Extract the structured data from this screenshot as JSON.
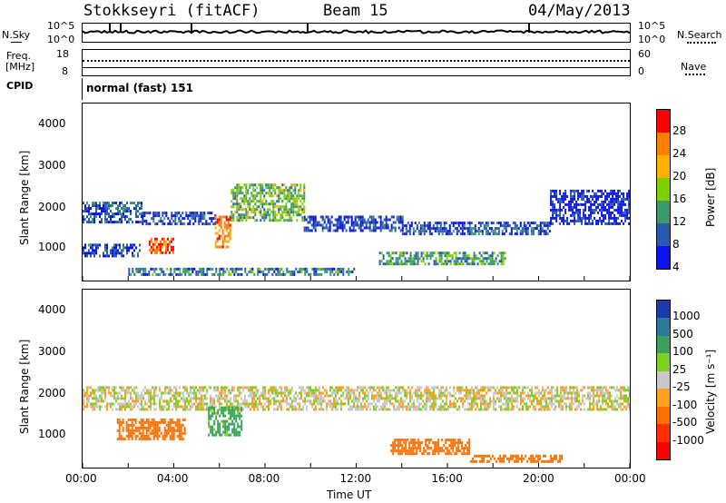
{
  "header": {
    "station": "Stokkseyri (fitACF)",
    "beam": "Beam 15",
    "date": "04/May/2013"
  },
  "nsky_panel": {
    "left_label": "N.Sky",
    "left_ticks": [
      "10^5",
      "10^0"
    ],
    "right_ticks": [
      "10^5",
      "10^0"
    ],
    "right_label": "N.Search"
  },
  "freq_panel": {
    "left_label_1": "Freq.",
    "left_label_2": "[MHz]",
    "left_ticks": [
      "18",
      "8"
    ],
    "right_ticks": [
      "60",
      "0"
    ],
    "right_label": "Nave"
  },
  "cpid_panel": {
    "left_label": "CPID",
    "mode_text": "normal (fast) 151"
  },
  "power_panel": {
    "ylabel": "Slant Range [km]",
    "colorbar_label": "Power [dB]",
    "colorbar_ticks": [
      "28",
      "24",
      "20",
      "16",
      "12",
      "8",
      "4"
    ],
    "colorbar_colors": [
      "#ff0000",
      "#ff7f00",
      "#ffb000",
      "#7fd000",
      "#3a9a6a",
      "#2a5ab0",
      "#0a14e8"
    ]
  },
  "velocity_panel": {
    "ylabel": "Slant Range [km]",
    "colorbar_label": "Velocity [m s⁻¹]",
    "colorbar_ticks": [
      "1000",
      "500",
      "100",
      "25",
      "-25",
      "-100",
      "-500",
      "-1000"
    ],
    "colorbar_colors": [
      "#1a3ab0",
      "#2a7a9a",
      "#3aa05a",
      "#7fd020",
      "#c8c8c8",
      "#ffa020",
      "#ff7000",
      "#ff3000",
      "#ff0000"
    ]
  },
  "xaxis": {
    "label": "Time UT",
    "ticks": [
      "00:00",
      "04:00",
      "08:00",
      "12:00",
      "16:00",
      "20:00",
      "00:00"
    ]
  },
  "chart_data": {
    "type": "heatmap",
    "title": "Stokkseyri (fitACF)  Beam 15  04/May/2013",
    "xlabel": "Time UT",
    "ylabel": "Slant Range [km]",
    "xlim": [
      "00:00",
      "00:00 (+24h)"
    ],
    "ylim": [
      180,
      4600
    ],
    "yticks": [
      1000,
      2000,
      3000,
      4000
    ],
    "panels": [
      {
        "name": "Power",
        "units": "dB",
        "colorbar_ticks": [
          4,
          8,
          12,
          16,
          20,
          24,
          28
        ],
        "regions": [
          {
            "t_start_h": 0.0,
            "t_end_h": 2.6,
            "r_start_km": 1650,
            "r_end_km": 2150,
            "level_db": 10
          },
          {
            "t_start_h": 2.6,
            "t_end_h": 5.8,
            "r_start_km": 1600,
            "r_end_km": 1900,
            "level_db": 8
          },
          {
            "t_start_h": 2.9,
            "t_end_h": 4.0,
            "r_start_km": 850,
            "r_end_km": 1250,
            "level_db": 28
          },
          {
            "t_start_h": 0.0,
            "t_end_h": 2.5,
            "r_start_km": 800,
            "r_end_km": 1100,
            "level_db": 8
          },
          {
            "t_start_h": 5.8,
            "t_end_h": 6.5,
            "r_start_km": 1000,
            "r_end_km": 1800,
            "level_db": 26
          },
          {
            "t_start_h": 6.5,
            "t_end_h": 9.7,
            "r_start_km": 1700,
            "r_end_km": 2600,
            "level_db": 16
          },
          {
            "t_start_h": 9.7,
            "t_end_h": 14.0,
            "r_start_km": 1400,
            "r_end_km": 1800,
            "level_db": 8
          },
          {
            "t_start_h": 14.0,
            "t_end_h": 20.5,
            "r_start_km": 1350,
            "r_end_km": 1650,
            "level_db": 9
          },
          {
            "t_start_h": 20.5,
            "t_end_h": 24.0,
            "r_start_km": 1600,
            "r_end_km": 2450,
            "level_db": 6
          },
          {
            "t_start_h": 2.0,
            "t_end_h": 12.0,
            "r_start_km": 350,
            "r_end_km": 500,
            "level_db": 12
          },
          {
            "t_start_h": 13.0,
            "t_end_h": 18.5,
            "r_start_km": 600,
            "r_end_km": 900,
            "level_db": 14
          }
        ]
      },
      {
        "name": "Velocity",
        "units": "m s-1",
        "colorbar_ticks": [
          -1000,
          -500,
          -100,
          -25,
          25,
          100,
          500,
          1000
        ],
        "regions": [
          {
            "t_start_h": 0.0,
            "t_end_h": 24.0,
            "r_start_km": 1600,
            "r_end_km": 2200,
            "level_ms": 0
          },
          {
            "t_start_h": 1.5,
            "t_end_h": 4.5,
            "r_start_km": 900,
            "r_end_km": 1400,
            "level_ms": -300
          },
          {
            "t_start_h": 5.5,
            "t_end_h": 7.0,
            "r_start_km": 1000,
            "r_end_km": 1700,
            "level_ms": 150
          },
          {
            "t_start_h": 13.5,
            "t_end_h": 17.0,
            "r_start_km": 550,
            "r_end_km": 900,
            "level_ms": -300
          },
          {
            "t_start_h": 17.0,
            "t_end_h": 21.0,
            "r_start_km": 300,
            "r_end_km": 500,
            "level_ms": -200
          }
        ]
      }
    ]
  }
}
